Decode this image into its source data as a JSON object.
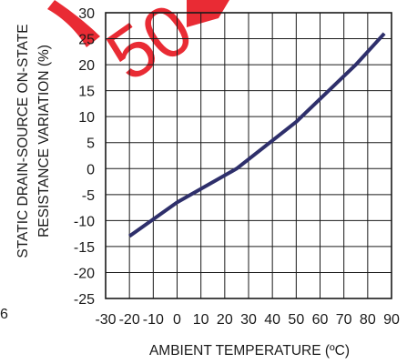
{
  "chart_data": {
    "type": "line",
    "title": "",
    "xlabel": "AMBIENT TEMPERATURE (ºC)",
    "ylabel_lines": [
      "STATIC DRAIN-SOURCE ON-STATE",
      "RESISTANCE VARIATION (%)"
    ],
    "xlim": [
      -30,
      90
    ],
    "ylim": [
      -25,
      30
    ],
    "x_ticks": [
      "-30",
      "-20",
      "-10",
      "0",
      "10",
      "20",
      "30",
      "40",
      "50",
      "60",
      "70",
      "80",
      "90"
    ],
    "y_ticks": [
      "30",
      "25",
      "20",
      "15",
      "10",
      "5",
      "0",
      "-5",
      "-10",
      "-15",
      "-20",
      "-25"
    ],
    "x_tick_values": [
      -30,
      -20,
      -10,
      0,
      10,
      20,
      30,
      40,
      50,
      60,
      70,
      80,
      90
    ],
    "y_tick_values": [
      30,
      25,
      20,
      15,
      10,
      5,
      0,
      -5,
      -10,
      -15,
      -20,
      -25
    ],
    "grid": true,
    "series": [
      {
        "x": [
          -20,
          0,
          25,
          50,
          75,
          87
        ],
        "y": [
          -13,
          -6.5,
          0,
          9,
          20,
          26
        ],
        "color": "#2e2f6b"
      }
    ],
    "left_margin_fragment": "6",
    "watermark": "5"
  }
}
